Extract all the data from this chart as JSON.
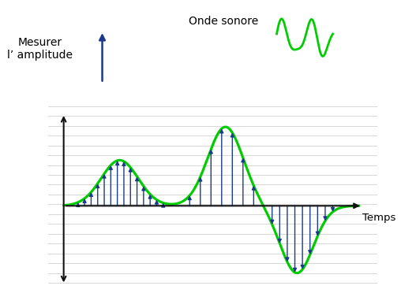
{
  "background_color": "#ffffff",
  "grid_color": "#d0d0d0",
  "wave_color": "#00cc00",
  "arrow_color": "#1a3a8a",
  "axis_color": "#111111",
  "text_mesurer": "Mesurer\nl’ amplitude",
  "text_onde": "Onde sonore",
  "text_temps": "Temps",
  "figsize": [
    5.08,
    3.91
  ],
  "dpi": 100
}
